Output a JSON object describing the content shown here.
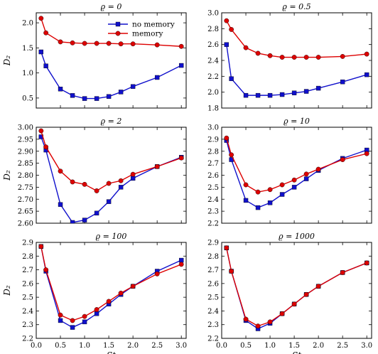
{
  "colors": {
    "no_memory": "#1010cc",
    "memory": "#dd0000"
  },
  "legend": {
    "position": "top-right",
    "shown_in_panel": 0,
    "entries": [
      "no memory",
      "memory"
    ]
  },
  "x_axis_label": "St",
  "y_axis_label": "D₂",
  "chart_data": [
    {
      "type": "line",
      "title": "ϱ = 0",
      "xlim": [
        0,
        3.1
      ],
      "ylim": [
        0.3,
        2.2
      ],
      "xticks": [
        0.0,
        0.5,
        1.0,
        1.5,
        2.0,
        2.5,
        3.0
      ],
      "xtick_labels": [
        "",
        "",
        "",
        "",
        "",
        "",
        ""
      ],
      "yticks": [
        0.5,
        1.0,
        1.5,
        2.0
      ],
      "ytick_labels": [
        "0.5",
        "1.0",
        "1.5",
        "2.0"
      ],
      "xlabel": "",
      "ylabel": "D₂",
      "series": [
        {
          "name": "no memory",
          "x": [
            0.1,
            0.2,
            0.5,
            0.75,
            1.0,
            1.25,
            1.5,
            1.75,
            2.0,
            2.5,
            3.0
          ],
          "values": [
            1.42,
            1.14,
            0.68,
            0.55,
            0.49,
            0.49,
            0.53,
            0.62,
            0.73,
            0.91,
            1.15
          ]
        },
        {
          "name": "memory",
          "x": [
            0.1,
            0.2,
            0.5,
            0.75,
            1.0,
            1.25,
            1.5,
            1.75,
            2.0,
            2.5,
            3.0
          ],
          "values": [
            2.09,
            1.8,
            1.62,
            1.6,
            1.59,
            1.59,
            1.59,
            1.58,
            1.58,
            1.56,
            1.53
          ]
        }
      ]
    },
    {
      "type": "line",
      "title": "ϱ = 0.5",
      "xlim": [
        0,
        3.1
      ],
      "ylim": [
        1.8,
        3.0
      ],
      "xticks": [
        0.0,
        0.5,
        1.0,
        1.5,
        2.0,
        2.5,
        3.0
      ],
      "xtick_labels": [
        "",
        "",
        "",
        "",
        "",
        "",
        ""
      ],
      "yticks": [
        1.8,
        2.0,
        2.2,
        2.4,
        2.6,
        2.8,
        3.0
      ],
      "ytick_labels": [
        "1.8",
        "2.0",
        "2.2",
        "2.4",
        "2.6",
        "2.8",
        "3.0"
      ],
      "xlabel": "",
      "ylabel": "",
      "series": [
        {
          "name": "no memory",
          "x": [
            0.1,
            0.2,
            0.5,
            0.75,
            1.0,
            1.25,
            1.5,
            1.75,
            2.0,
            2.5,
            3.0
          ],
          "values": [
            2.6,
            2.17,
            1.96,
            1.96,
            1.96,
            1.97,
            1.99,
            2.01,
            2.05,
            2.13,
            2.22
          ]
        },
        {
          "name": "memory",
          "x": [
            0.1,
            0.2,
            0.5,
            0.75,
            1.0,
            1.25,
            1.5,
            1.75,
            2.0,
            2.5,
            3.0
          ],
          "values": [
            2.9,
            2.79,
            2.56,
            2.49,
            2.46,
            2.44,
            2.44,
            2.44,
            2.44,
            2.45,
            2.48
          ]
        }
      ]
    },
    {
      "type": "line",
      "title": "ϱ = 2",
      "xlim": [
        0,
        3.1
      ],
      "ylim": [
        2.6,
        3.0
      ],
      "xticks": [
        0.0,
        0.5,
        1.0,
        1.5,
        2.0,
        2.5,
        3.0
      ],
      "xtick_labels": [
        "",
        "",
        "",
        "",
        "",
        "",
        ""
      ],
      "yticks": [
        2.6,
        2.65,
        2.7,
        2.75,
        2.8,
        2.85,
        2.9,
        2.95,
        3.0
      ],
      "ytick_labels": [
        "2.60",
        "2.65",
        "2.70",
        "2.75",
        "2.80",
        "2.85",
        "2.90",
        "2.95",
        "3.00"
      ],
      "xlabel": "",
      "ylabel": "D₂",
      "series": [
        {
          "name": "no memory",
          "x": [
            0.1,
            0.2,
            0.5,
            0.75,
            1.0,
            1.25,
            1.5,
            1.75,
            2.0,
            2.5,
            3.0
          ],
          "values": [
            2.96,
            2.905,
            2.678,
            2.603,
            2.613,
            2.642,
            2.69,
            2.75,
            2.787,
            2.836,
            2.875
          ]
        },
        {
          "name": "memory",
          "x": [
            0.1,
            0.2,
            0.5,
            0.75,
            1.0,
            1.25,
            1.5,
            1.75,
            2.0,
            2.5,
            3.0
          ],
          "values": [
            2.985,
            2.918,
            2.817,
            2.772,
            2.762,
            2.735,
            2.766,
            2.777,
            2.804,
            2.836,
            2.872
          ]
        }
      ]
    },
    {
      "type": "line",
      "title": "ϱ = 10",
      "xlim": [
        0,
        3.1
      ],
      "ylim": [
        2.2,
        3.0
      ],
      "xticks": [
        0.0,
        0.5,
        1.0,
        1.5,
        2.0,
        2.5,
        3.0
      ],
      "xtick_labels": [
        "",
        "",
        "",
        "",
        "",
        "",
        ""
      ],
      "yticks": [
        2.2,
        2.3,
        2.4,
        2.5,
        2.6,
        2.7,
        2.8,
        2.9,
        3.0
      ],
      "ytick_labels": [
        "2.2",
        "2.3",
        "2.4",
        "2.5",
        "2.6",
        "2.7",
        "2.8",
        "2.9",
        "3.0"
      ],
      "xlabel": "",
      "ylabel": "",
      "series": [
        {
          "name": "no memory",
          "x": [
            0.1,
            0.2,
            0.5,
            0.75,
            1.0,
            1.25,
            1.5,
            1.75,
            2.0,
            2.5,
            3.0
          ],
          "values": [
            2.89,
            2.73,
            2.39,
            2.33,
            2.37,
            2.44,
            2.5,
            2.57,
            2.64,
            2.74,
            2.81
          ]
        },
        {
          "name": "memory",
          "x": [
            0.1,
            0.2,
            0.5,
            0.75,
            1.0,
            1.25,
            1.5,
            1.75,
            2.0,
            2.5,
            3.0
          ],
          "values": [
            2.91,
            2.77,
            2.52,
            2.46,
            2.48,
            2.52,
            2.56,
            2.61,
            2.65,
            2.73,
            2.78
          ]
        }
      ]
    },
    {
      "type": "line",
      "title": "ϱ = 100",
      "xlim": [
        0,
        3.1
      ],
      "ylim": [
        2.2,
        2.9
      ],
      "xticks": [
        0.0,
        0.5,
        1.0,
        1.5,
        2.0,
        2.5,
        3.0
      ],
      "xtick_labels": [
        "0.0",
        "0.5",
        "1.0",
        "1.5",
        "2.0",
        "2.5",
        "3.0"
      ],
      "yticks": [
        2.2,
        2.3,
        2.4,
        2.5,
        2.6,
        2.7,
        2.8,
        2.9
      ],
      "ytick_labels": [
        "2.2",
        "2.3",
        "2.4",
        "2.5",
        "2.6",
        "2.7",
        "2.8",
        "2.9"
      ],
      "xlabel": "St",
      "ylabel": "D₂",
      "series": [
        {
          "name": "no memory",
          "x": [
            0.1,
            0.2,
            0.5,
            0.75,
            1.0,
            1.25,
            1.5,
            1.75,
            2.0,
            2.5,
            3.0
          ],
          "values": [
            2.87,
            2.69,
            2.33,
            2.28,
            2.32,
            2.38,
            2.45,
            2.52,
            2.58,
            2.69,
            2.77
          ]
        },
        {
          "name": "memory",
          "x": [
            0.1,
            0.2,
            0.5,
            0.75,
            1.0,
            1.25,
            1.5,
            1.75,
            2.0,
            2.5,
            3.0
          ],
          "values": [
            2.87,
            2.7,
            2.37,
            2.33,
            2.36,
            2.41,
            2.47,
            2.53,
            2.58,
            2.67,
            2.74
          ]
        }
      ]
    },
    {
      "type": "line",
      "title": "ϱ = 1000",
      "xlim": [
        0,
        3.1
      ],
      "ylim": [
        2.2,
        2.9
      ],
      "xticks": [
        0.0,
        0.5,
        1.0,
        1.5,
        2.0,
        2.5,
        3.0
      ],
      "xtick_labels": [
        "0.0",
        "0.5",
        "1.0",
        "1.5",
        "2.0",
        "2.5",
        "3.0"
      ],
      "yticks": [
        2.2,
        2.3,
        2.4,
        2.5,
        2.6,
        2.7,
        2.8,
        2.9
      ],
      "ytick_labels": [
        "2.2",
        "2.3",
        "2.4",
        "2.5",
        "2.6",
        "2.7",
        "2.8",
        "2.9"
      ],
      "xlabel": "St",
      "ylabel": "",
      "series": [
        {
          "name": "no memory",
          "x": [
            0.1,
            0.2,
            0.5,
            0.75,
            1.0,
            1.25,
            1.5,
            1.75,
            2.0,
            2.5,
            3.0
          ],
          "values": [
            2.86,
            2.69,
            2.33,
            2.27,
            2.31,
            2.38,
            2.45,
            2.52,
            2.58,
            2.68,
            2.75
          ]
        },
        {
          "name": "memory",
          "x": [
            0.1,
            0.2,
            0.5,
            0.75,
            1.0,
            1.25,
            1.5,
            1.75,
            2.0,
            2.5,
            3.0
          ],
          "values": [
            2.86,
            2.69,
            2.34,
            2.29,
            2.32,
            2.38,
            2.45,
            2.52,
            2.58,
            2.68,
            2.75
          ]
        }
      ]
    }
  ]
}
